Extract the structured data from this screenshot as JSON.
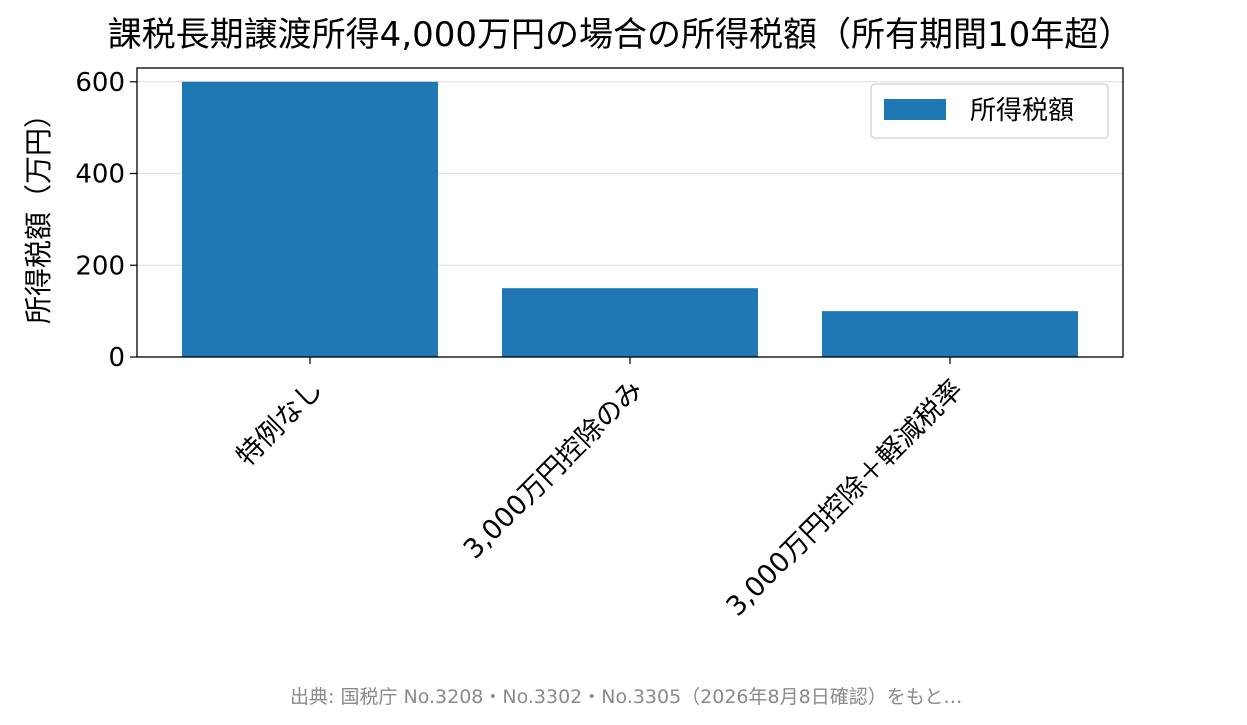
{
  "chart_data": {
    "type": "bar",
    "title": "課税長期譲渡所得4,000万円の場合の所得税額（所有期間10年超）",
    "xlabel": "",
    "ylabel": "所得税額（万円）",
    "categories": [
      "特例なし",
      "3,000万円控除のみ",
      "3,000万円控除＋軽減税率"
    ],
    "series": [
      {
        "name": "所得税額",
        "values": [
          600,
          150,
          100
        ],
        "color": "#1f77b4"
      }
    ],
    "ylim": [
      0,
      630
    ],
    "yticks": [
      0,
      200,
      400,
      600
    ],
    "grid": "y",
    "legend_position": "top-right"
  },
  "source_note": "出典: 国税庁 No.3208・No.3302・No.3305（2026年8月8日確認）をもと…"
}
